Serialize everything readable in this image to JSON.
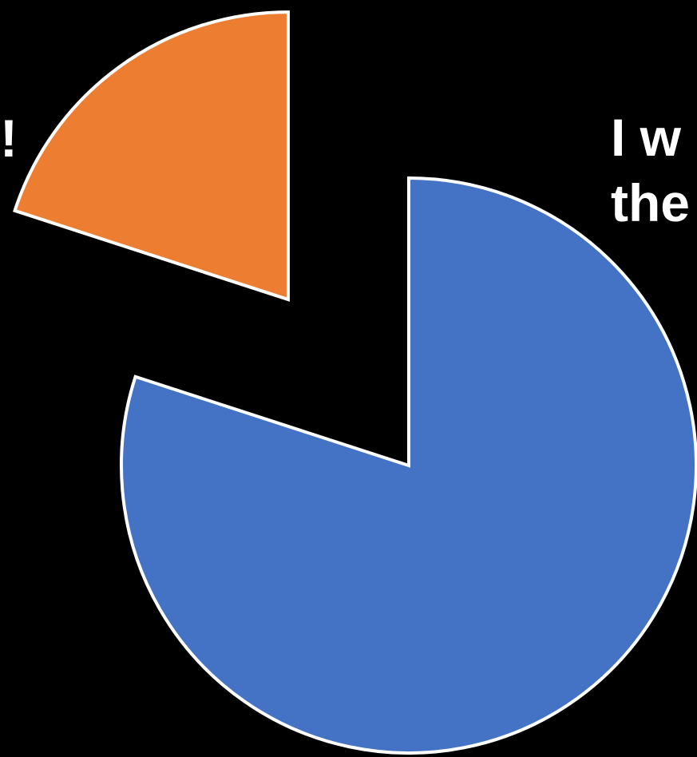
{
  "chart_data": {
    "type": "pie",
    "categories": [
      "I w the",
      "!"
    ],
    "values": [
      80,
      20
    ],
    "colors": [
      "#4472C4",
      "#ED7D31"
    ],
    "label_lines": [
      [
        "I w",
        "the"
      ],
      [
        "!"
      ]
    ],
    "title": "",
    "legend": "none",
    "background": "#000000",
    "slice_border_color": "#FFFFFF"
  }
}
